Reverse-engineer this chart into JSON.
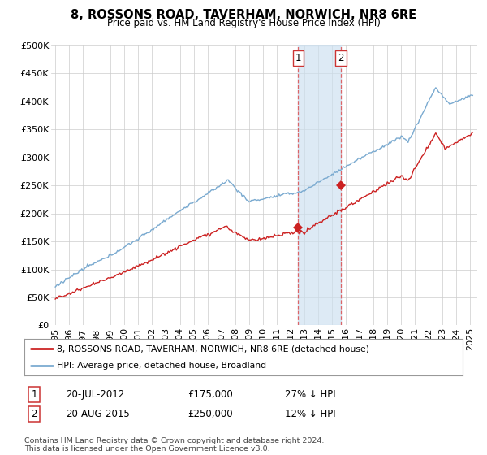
{
  "title": "8, ROSSONS ROAD, TAVERHAM, NORWICH, NR8 6RE",
  "subtitle": "Price paid vs. HM Land Registry's House Price Index (HPI)",
  "ylim": [
    0,
    500000
  ],
  "yticks": [
    0,
    50000,
    100000,
    150000,
    200000,
    250000,
    300000,
    350000,
    400000,
    450000,
    500000
  ],
  "xlim_start": 1994.7,
  "xlim_end": 2025.5,
  "hpi_color": "#7aaad0",
  "price_color": "#cc2222",
  "transaction1_date": 2012.55,
  "transaction1_price": 175000,
  "transaction2_date": 2015.64,
  "transaction2_price": 250000,
  "legend_line1": "8, ROSSONS ROAD, TAVERHAM, NORWICH, NR8 6RE (detached house)",
  "legend_line2": "HPI: Average price, detached house, Broadland",
  "table_row1_num": "1",
  "table_row1_date": "20-JUL-2012",
  "table_row1_price": "£175,000",
  "table_row1_hpi": "27% ↓ HPI",
  "table_row2_num": "2",
  "table_row2_date": "20-AUG-2015",
  "table_row2_price": "£250,000",
  "table_row2_hpi": "12% ↓ HPI",
  "footer": "Contains HM Land Registry data © Crown copyright and database right 2024.\nThis data is licensed under the Open Government Licence v3.0.",
  "background_color": "#ffffff",
  "grid_color": "#cccccc"
}
